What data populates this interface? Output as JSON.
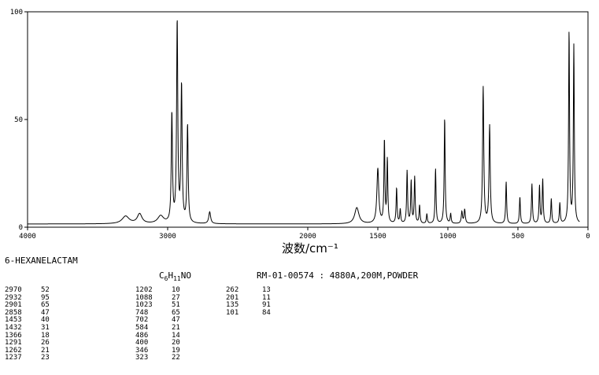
{
  "compound": {
    "name": "6-HEXANELACTAM",
    "formula_prefix": "C",
    "formula_sub1": "6",
    "formula_mid": "H",
    "formula_sub2": "11",
    "formula_suffix": "NO",
    "spectrum_id": "RM-01-00574 : 4880A,200M,POWDER"
  },
  "chart_data": {
    "type": "line",
    "title": "",
    "xlabel": "波数/cm⁻¹",
    "ylabel": "",
    "xlim": [
      4000,
      0
    ],
    "ylim": [
      0,
      100
    ],
    "x_ticks": [
      {
        "v": 4000,
        "label": "4000"
      },
      {
        "v": 3000,
        "label": "3000"
      },
      {
        "v": 2000,
        "label": "2000"
      },
      {
        "v": 1500,
        "label": "1500"
      },
      {
        "v": 1000,
        "label": "1000"
      },
      {
        "v": 500,
        "label": "500"
      },
      {
        "v": 0,
        "label": "0"
      }
    ],
    "y_ticks": [
      {
        "v": 0,
        "label": "0"
      },
      {
        "v": 50,
        "label": "50"
      },
      {
        "v": 100,
        "label": "100"
      }
    ],
    "baseline": 1.5,
    "peaks": [
      {
        "x": 3300,
        "y": 5,
        "w": 30
      },
      {
        "x": 3200,
        "y": 6,
        "w": 20
      },
      {
        "x": 3050,
        "y": 5,
        "w": 25
      },
      {
        "x": 2970,
        "y": 52,
        "w": 5
      },
      {
        "x": 2932,
        "y": 95,
        "w": 5
      },
      {
        "x": 2901,
        "y": 65,
        "w": 5
      },
      {
        "x": 2858,
        "y": 47,
        "w": 5
      },
      {
        "x": 2700,
        "y": 7,
        "w": 8
      },
      {
        "x": 1650,
        "y": 9,
        "w": 18
      },
      {
        "x": 1500,
        "y": 27,
        "w": 8
      },
      {
        "x": 1453,
        "y": 40,
        "w": 4
      },
      {
        "x": 1432,
        "y": 31,
        "w": 4
      },
      {
        "x": 1366,
        "y": 18,
        "w": 4
      },
      {
        "x": 1340,
        "y": 8,
        "w": 4
      },
      {
        "x": 1291,
        "y": 26,
        "w": 4
      },
      {
        "x": 1262,
        "y": 21,
        "w": 4
      },
      {
        "x": 1237,
        "y": 23,
        "w": 4
      },
      {
        "x": 1202,
        "y": 10,
        "w": 4
      },
      {
        "x": 1150,
        "y": 6,
        "w": 4
      },
      {
        "x": 1088,
        "y": 27,
        "w": 4
      },
      {
        "x": 1023,
        "y": 51,
        "w": 4
      },
      {
        "x": 980,
        "y": 6,
        "w": 4
      },
      {
        "x": 900,
        "y": 7,
        "w": 5
      },
      {
        "x": 880,
        "y": 8,
        "w": 5
      },
      {
        "x": 748,
        "y": 65,
        "w": 5
      },
      {
        "x": 702,
        "y": 47,
        "w": 5
      },
      {
        "x": 584,
        "y": 21,
        "w": 4
      },
      {
        "x": 486,
        "y": 14,
        "w": 4
      },
      {
        "x": 400,
        "y": 20,
        "w": 4
      },
      {
        "x": 346,
        "y": 19,
        "w": 4
      },
      {
        "x": 323,
        "y": 22,
        "w": 4
      },
      {
        "x": 262,
        "y": 13,
        "w": 4
      },
      {
        "x": 201,
        "y": 11,
        "w": 4
      },
      {
        "x": 135,
        "y": 91,
        "w": 4
      },
      {
        "x": 101,
        "y": 84,
        "w": 4
      }
    ],
    "peak_table": [
      [
        "2970",
        "52"
      ],
      [
        "2932",
        "95"
      ],
      [
        "2901",
        "65"
      ],
      [
        "2858",
        "47"
      ],
      [
        "1453",
        "40"
      ],
      [
        "1432",
        "31"
      ],
      [
        "1366",
        "18"
      ],
      [
        "1291",
        "26"
      ],
      [
        "1262",
        "21"
      ],
      [
        "1237",
        "23"
      ],
      [
        "1202",
        "10"
      ],
      [
        "1088",
        "27"
      ],
      [
        "1023",
        "51"
      ],
      [
        "748",
        "65"
      ],
      [
        "702",
        "47"
      ],
      [
        "584",
        "21"
      ],
      [
        "486",
        "14"
      ],
      [
        "400",
        "20"
      ],
      [
        "346",
        "19"
      ],
      [
        "323",
        "22"
      ],
      [
        "262",
        "13"
      ],
      [
        "201",
        "11"
      ],
      [
        "135",
        "91"
      ],
      [
        "101",
        "84"
      ]
    ]
  }
}
